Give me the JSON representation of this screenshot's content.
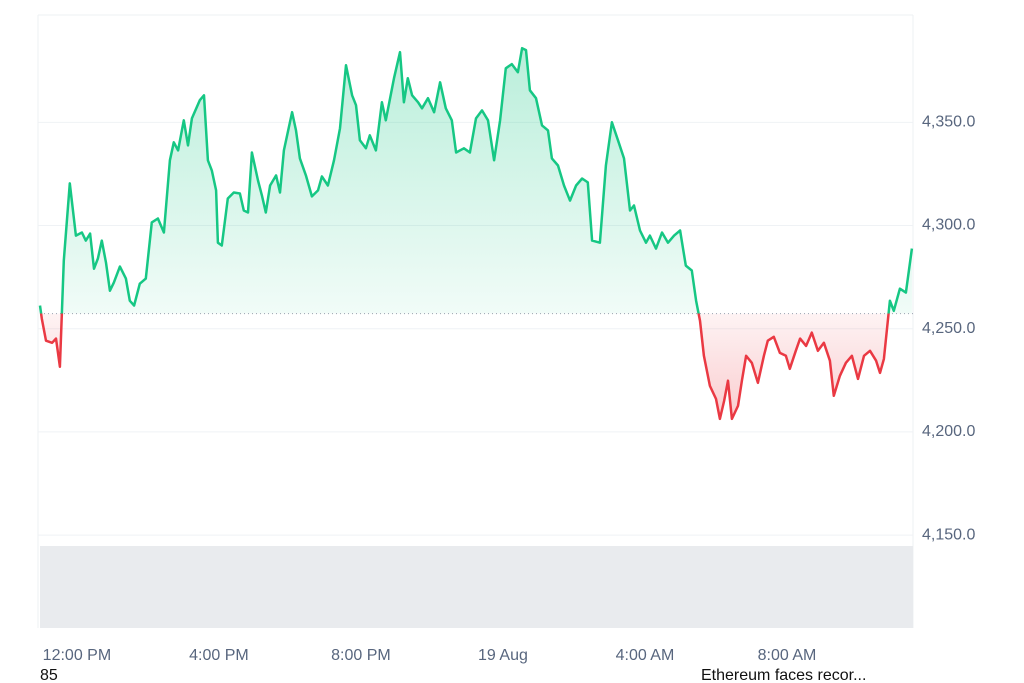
{
  "chart_data": {
    "type": "line",
    "x": [
      10.96,
      11.01,
      11.13,
      11.3,
      11.41,
      11.52,
      11.63,
      11.8,
      11.97,
      12.14,
      12.25,
      12.37,
      12.48,
      12.59,
      12.7,
      12.82,
      12.93,
      13.04,
      13.21,
      13.38,
      13.49,
      13.61,
      13.77,
      13.94,
      14.11,
      14.28,
      14.45,
      14.62,
      14.73,
      14.85,
      15.01,
      15.13,
      15.24,
      15.46,
      15.58,
      15.69,
      15.8,
      15.92,
      15.97,
      16.08,
      16.25,
      16.42,
      16.59,
      16.7,
      16.82,
      16.93,
      17.1,
      17.21,
      17.32,
      17.44,
      17.61,
      17.72,
      17.83,
      18.06,
      18.17,
      18.28,
      18.45,
      18.62,
      18.79,
      18.9,
      19.07,
      19.24,
      19.41,
      19.58,
      19.75,
      19.86,
      19.97,
      20.14,
      20.25,
      20.42,
      20.59,
      20.7,
      20.82,
      20.93,
      21.1,
      21.21,
      21.32,
      21.44,
      21.61,
      21.72,
      21.89,
      22.06,
      22.23,
      22.39,
      22.56,
      22.68,
      22.9,
      23.07,
      23.24,
      23.41,
      23.58,
      23.75,
      23.92,
      24.08,
      24.25,
      24.42,
      24.54,
      24.65,
      24.76,
      24.93,
      25.1,
      25.27,
      25.38,
      25.55,
      25.72,
      25.89,
      26.06,
      26.23,
      26.39,
      26.51,
      26.73,
      26.9,
      27.07,
      27.24,
      27.41,
      27.58,
      27.69,
      27.86,
      28.03,
      28.14,
      28.31,
      28.48,
      28.65,
      28.82,
      28.99,
      29.15,
      29.32,
      29.44,
      29.55,
      29.66,
      29.83,
      30.0,
      30.11,
      30.23,
      30.34,
      30.45,
      30.62,
      30.73,
      30.85,
      31.01,
      31.18,
      31.35,
      31.46,
      31.63,
      31.8,
      31.97,
      32.08,
      32.25,
      32.37,
      32.54,
      32.7,
      32.87,
      33.04,
      33.21,
      33.32,
      33.49,
      33.66,
      33.83,
      34.0,
      34.17,
      34.34,
      34.51,
      34.62,
      34.73,
      34.9,
      35.01,
      35.18,
      35.35,
      35.52
    ],
    "values": [
      4261.2,
      4254.9,
      4244.2,
      4243.2,
      4245.2,
      4231.6,
      4283.0,
      4320.4,
      4295.1,
      4296.6,
      4292.7,
      4296.1,
      4279.1,
      4284.0,
      4292.7,
      4282.0,
      4268.4,
      4272.3,
      4280.1,
      4274.3,
      4263.6,
      4261.2,
      4271.8,
      4274.3,
      4301.5,
      4303.4,
      4296.6,
      4331.6,
      4340.3,
      4336.4,
      4351.0,
      4338.8,
      4351.9,
      4360.7,
      4363.1,
      4331.6,
      4326.7,
      4317.0,
      4291.7,
      4290.3,
      4313.1,
      4316.0,
      4315.5,
      4307.3,
      4306.3,
      4335.4,
      4321.8,
      4314.6,
      4306.3,
      4319.4,
      4324.3,
      4316.0,
      4336.4,
      4354.9,
      4346.1,
      4332.5,
      4324.3,
      4314.1,
      4317.0,
      4323.8,
      4319.4,
      4331.6,
      4347.1,
      4377.7,
      4363.1,
      4358.3,
      4341.3,
      4337.4,
      4343.7,
      4336.4,
      4359.7,
      4351.0,
      4361.7,
      4371.4,
      4384.0,
      4359.7,
      4371.4,
      4363.1,
      4359.7,
      4356.8,
      4361.7,
      4354.9,
      4369.4,
      4356.8,
      4351.0,
      4335.4,
      4337.4,
      4335.4,
      4351.9,
      4355.8,
      4351.0,
      4331.6,
      4351.0,
      4376.2,
      4378.2,
      4374.3,
      4385.9,
      4385.0,
      4365.5,
      4361.7,
      4348.5,
      4346.1,
      4332.5,
      4329.1,
      4319.4,
      4312.1,
      4319.4,
      4322.8,
      4320.9,
      4292.7,
      4291.7,
      4329.1,
      4350.0,
      4341.3,
      4332.5,
      4307.3,
      4309.7,
      4297.6,
      4291.7,
      4295.1,
      4288.8,
      4296.6,
      4291.7,
      4295.1,
      4297.6,
      4280.6,
      4278.2,
      4263.6,
      4253.9,
      4236.9,
      4222.3,
      4216.0,
      4206.3,
      4215.0,
      4224.8,
      4206.3,
      4212.6,
      4224.8,
      4236.9,
      4233.5,
      4223.8,
      4236.9,
      4244.2,
      4246.1,
      4238.3,
      4236.9,
      4230.6,
      4239.3,
      4245.2,
      4241.7,
      4248.1,
      4239.3,
      4243.2,
      4234.5,
      4217.5,
      4227.2,
      4233.5,
      4236.9,
      4225.7,
      4236.9,
      4239.3,
      4234.5,
      4228.6,
      4235.4,
      4263.6,
      4258.7,
      4269.4,
      4267.5,
      4288.8
    ],
    "baseline": 4257.3,
    "colors": {
      "up": "#16c784",
      "down": "#ea3943"
    },
    "xlim": [
      10.96,
      35.55
    ],
    "xticks": [
      {
        "value": 12,
        "label": "12:00 PM"
      },
      {
        "value": 16,
        "label": "4:00 PM"
      },
      {
        "value": 20,
        "label": "8:00 PM"
      },
      {
        "value": 24,
        "label": "19 Aug"
      },
      {
        "value": 28,
        "label": "4:00 AM"
      },
      {
        "value": 32,
        "label": "8:00 AM"
      }
    ],
    "ylim": [
      4105,
      4402
    ],
    "yticks": [
      {
        "value": 4150,
        "label": "4,150.0"
      },
      {
        "value": 4200,
        "label": "4,200.0"
      },
      {
        "value": 4250,
        "label": "4,250.0"
      },
      {
        "value": 4300,
        "label": "4,300.0"
      },
      {
        "value": 4350,
        "label": "4,350.0"
      }
    ],
    "grid": true,
    "annotations": [
      "85",
      "Ethereum faces recor..."
    ]
  }
}
